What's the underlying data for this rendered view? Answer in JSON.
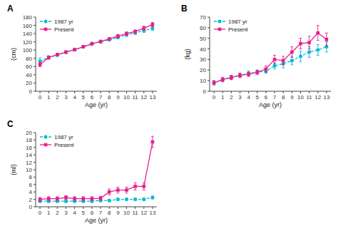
{
  "chart_data": [
    {
      "type": "line",
      "title": "A",
      "x_label": "Age (yr)",
      "y_label": "(cm)",
      "x": [
        0,
        1,
        2,
        3,
        4,
        5,
        6,
        7,
        8,
        9,
        10,
        11,
        12,
        13
      ],
      "xlim": [
        -0.5,
        13.5
      ],
      "xticks": [
        0,
        1,
        2,
        3,
        4,
        5,
        6,
        7,
        8,
        9,
        10,
        11,
        12,
        13
      ],
      "ylim": [
        0,
        180
      ],
      "yticks": [
        0,
        20,
        40,
        60,
        80,
        100,
        120,
        140,
        160,
        180
      ],
      "legend": "upper left",
      "series": [
        {
          "name": "1987 yr",
          "color": "#00bcd4",
          "marker": "circle",
          "line_style": "dashed",
          "values": [
            73,
            82,
            88,
            95,
            101,
            108,
            116,
            120,
            125,
            131,
            137,
            142,
            147,
            153
          ],
          "errors": [
            8,
            4,
            3,
            3,
            3,
            3,
            3,
            3,
            3,
            4,
            4,
            4,
            4,
            5
          ]
        },
        {
          "name": "Present",
          "color": "#e91e8c",
          "marker": "square",
          "line_style": "solid",
          "values": [
            65,
            82,
            89,
            95,
            101,
            108,
            115,
            121,
            127,
            134,
            140,
            145,
            153,
            162
          ],
          "errors": [
            5,
            4,
            3,
            3,
            3,
            3,
            3,
            3,
            3,
            4,
            4,
            4,
            5,
            5
          ]
        }
      ]
    },
    {
      "type": "line",
      "title": "B",
      "x_label": "Age (yr)",
      "y_label": "(kg)",
      "x": [
        0,
        1,
        2,
        3,
        4,
        5,
        6,
        7,
        8,
        9,
        10,
        11,
        12,
        13
      ],
      "xlim": [
        -0.5,
        13.5
      ],
      "xticks": [
        0,
        1,
        2,
        3,
        4,
        5,
        6,
        7,
        8,
        9,
        10,
        11,
        12,
        13
      ],
      "ylim": [
        0,
        70
      ],
      "yticks": [
        0,
        10,
        20,
        30,
        40,
        50,
        60,
        70
      ],
      "legend": "upper left",
      "series": [
        {
          "name": "1987 yr",
          "color": "#00bcd4",
          "marker": "circle",
          "line_style": "dashed",
          "values": [
            8,
            11,
            13,
            15,
            17,
            18,
            19,
            24,
            26,
            29,
            33,
            37,
            39,
            42
          ],
          "errors": [
            2,
            2,
            2,
            2,
            2,
            2,
            2,
            3,
            4,
            4,
            5,
            5,
            5,
            5
          ]
        },
        {
          "name": "Present",
          "color": "#e91e8c",
          "marker": "square",
          "line_style": "solid",
          "values": [
            8,
            11,
            13,
            15,
            16,
            18,
            21,
            30,
            29,
            37,
            45,
            46,
            55,
            49
          ],
          "errors": [
            2,
            2,
            2,
            2,
            2,
            2,
            3,
            4,
            4,
            5,
            5,
            6,
            7,
            6
          ]
        }
      ]
    },
    {
      "type": "line",
      "title": "C",
      "x_label": "Age (yr)",
      "y_label": "(ml)",
      "x": [
        0,
        1,
        2,
        3,
        4,
        5,
        6,
        7,
        8,
        9,
        10,
        11,
        12,
        13
      ],
      "xlim": [
        -0.5,
        13.5
      ],
      "xticks": [
        0,
        1,
        2,
        3,
        4,
        5,
        6,
        7,
        8,
        9,
        10,
        11,
        12,
        13
      ],
      "ylim": [
        0,
        20
      ],
      "yticks": [
        0,
        2,
        4,
        6,
        8,
        10,
        12,
        14,
        16,
        18,
        20
      ],
      "legend": "upper left",
      "series": [
        {
          "name": "1987 yr",
          "color": "#00bcd4",
          "marker": "circle",
          "line_style": "dashed",
          "values": [
            1.5,
            1.5,
            1.5,
            1.5,
            1.5,
            1.5,
            1.5,
            1.7,
            1.7,
            2.0,
            2.0,
            2.0,
            2.0,
            2.5
          ],
          "errors": [
            0.3,
            0.3,
            0.3,
            0.3,
            0.3,
            0.3,
            0.3,
            0.3,
            0.3,
            0.3,
            0.3,
            0.3,
            0.3,
            0.4
          ]
        },
        {
          "name": "Present",
          "color": "#e91e8c",
          "marker": "square",
          "line_style": "solid",
          "values": [
            2.0,
            2.2,
            2.2,
            2.5,
            2.2,
            2.2,
            2.2,
            2.3,
            4.0,
            4.5,
            4.5,
            5.5,
            5.5,
            17.5
          ],
          "errors": [
            0.5,
            0.5,
            0.5,
            0.5,
            0.5,
            0.5,
            0.5,
            0.5,
            0.8,
            0.8,
            0.8,
            1.0,
            1.0,
            1.5
          ]
        }
      ]
    }
  ]
}
